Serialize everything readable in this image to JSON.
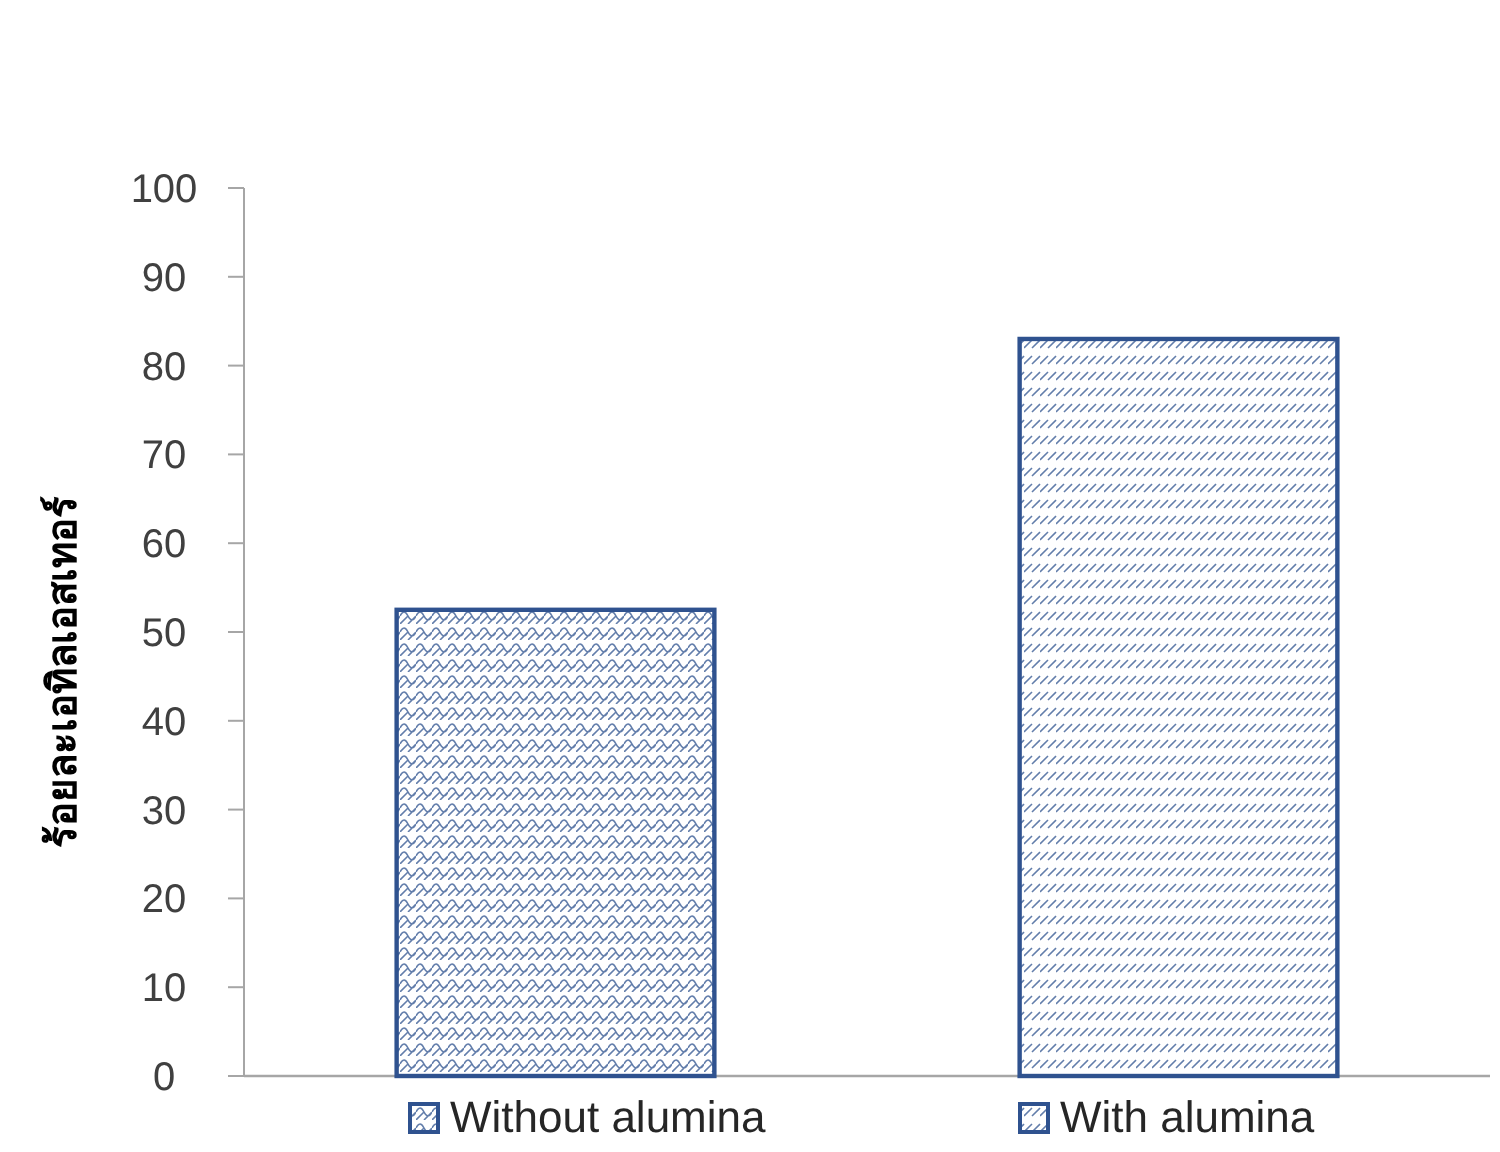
{
  "chart_data": {
    "type": "bar",
    "ylabel": "ร้อยละเอทิลเอสเทอร์",
    "categories": [
      null,
      null
    ],
    "series": [
      {
        "name": "Without alumina",
        "color": "#2f528f",
        "values": [
          52.5,
          null
        ]
      },
      {
        "name": "With alumina",
        "color": "#2f528f",
        "values": [
          null,
          83
        ]
      }
    ],
    "ylim": [
      0,
      100
    ],
    "yticks": [
      0,
      10,
      20,
      30,
      40,
      50,
      60,
      70,
      80,
      90,
      100
    ],
    "legend": "bottom",
    "grid": false
  }
}
